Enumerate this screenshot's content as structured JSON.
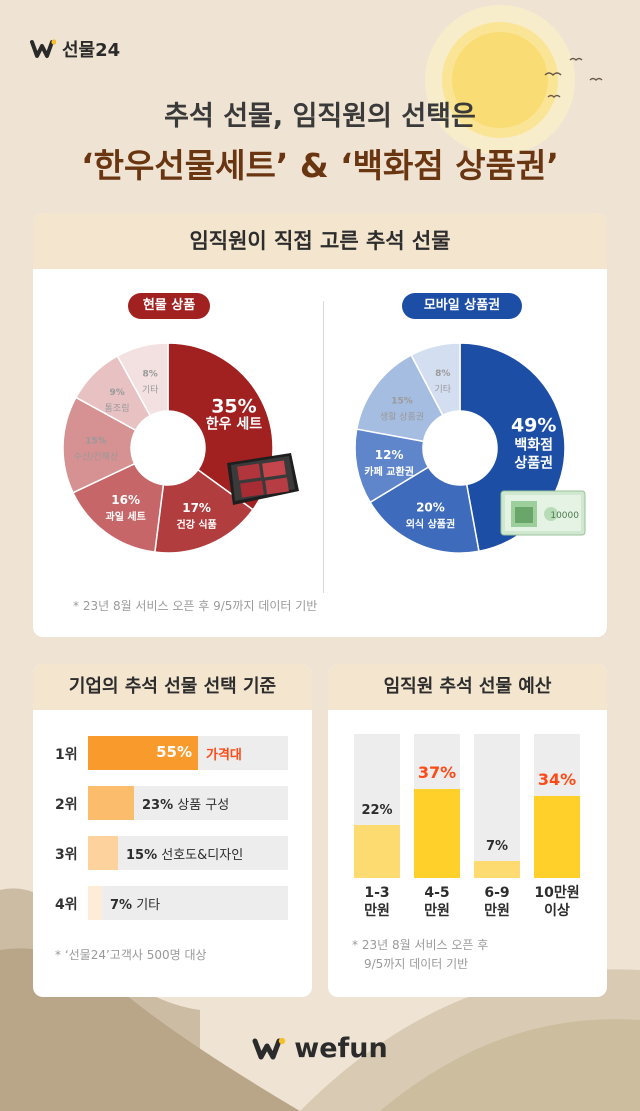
{
  "brand": {
    "name": "선물24"
  },
  "headline": {
    "line1": "추석 선물, 임직원의 선택은",
    "line2": "‘한우선물세트’ & ‘백화점 상품권’"
  },
  "top_card": {
    "title": "임직원이 직접 고른 추석 선물",
    "left_pill": "현물 상품",
    "right_pill": "모바일 상품권",
    "note": "* 23년 8월 서비스 오픈 후 9/5까지 데이터 기반",
    "voucher_amount": "10000"
  },
  "criteria_card": {
    "title": "기업의 추석 선물 선택 기준",
    "note": "* ‘선물24’고객사 500명 대상"
  },
  "budget_card": {
    "title": "임직원 추석 선물 예산",
    "note_line1": "* 23년 8월 서비스 오픈 후",
    "note_line2": "9/5까지 데이터 기반"
  },
  "footer": {
    "brand": "wefun"
  },
  "colors": {
    "accent_red": "#a12120",
    "accent_blue": "#1d4ea5",
    "accent_orange": "#f89a2c",
    "accent_yellow": "#ffd02a",
    "highlight_text": "#ff4a17"
  },
  "chart_data": [
    {
      "type": "pie",
      "name": "현물 상품",
      "labels": [
        "한우 세트",
        "건강 식품",
        "과일 세트",
        "수산/건해산",
        "통조림",
        "기타"
      ],
      "values": [
        35,
        17,
        16,
        15,
        9,
        8
      ],
      "display_values": [
        "35%",
        "17%",
        "16%",
        "15%",
        "9%",
        "8%"
      ],
      "colors": [
        "#a12120",
        "#b23d3f",
        "#c66668",
        "#d69193",
        "#e8c1c2",
        "#f3e0e0"
      ]
    },
    {
      "type": "pie",
      "name": "모바일 상품권",
      "labels": [
        "백화점 상품권",
        "외식 상품권",
        "카페 교환권",
        "생활 상품권",
        "기타"
      ],
      "display_labels": [
        [
          "백화점",
          "상품권"
        ],
        [
          "외식 상품권"
        ],
        [
          "카페 교환권"
        ],
        [
          "생활 상품권"
        ],
        [
          "기타"
        ]
      ],
      "values": [
        49,
        20,
        12,
        15,
        8
      ],
      "display_values": [
        "49%",
        "20%",
        "12%",
        "15%",
        "8%"
      ],
      "colors": [
        "#1d4ea5",
        "#3f6bbc",
        "#5f86cb",
        "#a5bde0",
        "#d3def0"
      ]
    },
    {
      "type": "bar",
      "orientation": "horizontal",
      "ranks": [
        "1위",
        "2위",
        "3위",
        "4위"
      ],
      "categories": [
        "가격대",
        "상품 구성",
        "선호도&디자인",
        "기타"
      ],
      "values": [
        55,
        23,
        15,
        7
      ],
      "display_values": [
        "55%",
        "23%",
        "15%",
        "7%"
      ],
      "colors": [
        "#f89a2c",
        "#fbbd6b",
        "#fdd29c",
        "#feecd6"
      ],
      "xlim": [
        0,
        100
      ]
    },
    {
      "type": "bar",
      "orientation": "vertical",
      "categories": [
        [
          "1-3",
          "만원"
        ],
        [
          "4-5",
          "만원"
        ],
        [
          "6-9",
          "만원"
        ],
        [
          "10만원",
          "이상"
        ]
      ],
      "values": [
        22,
        37,
        7,
        34
      ],
      "display_values": [
        "22%",
        "37%",
        "7%",
        "34%"
      ],
      "highlight": [
        false,
        true,
        false,
        true
      ],
      "colors": [
        "#fddb70",
        "#ffd02a",
        "#fddb70",
        "#ffd02a"
      ],
      "ylim": [
        0,
        60
      ]
    }
  ]
}
